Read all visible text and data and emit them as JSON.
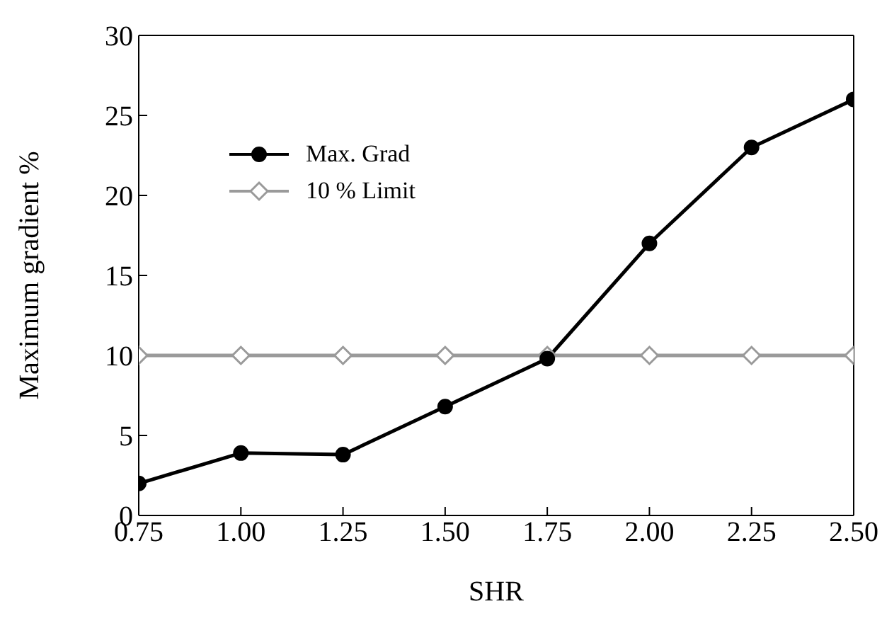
{
  "chart_data": {
    "type": "line",
    "xlabel": "SHR",
    "ylabel": "Maximum gradient  %",
    "x": [
      0.75,
      1.0,
      1.25,
      1.5,
      1.75,
      2.0,
      2.25,
      2.5
    ],
    "series": [
      {
        "name": "Max. Grad",
        "color": "#000000",
        "marker": "circle",
        "values": [
          2,
          3.9,
          3.8,
          6.8,
          9.8,
          17,
          23,
          26
        ]
      },
      {
        "name": "10 % Limit",
        "color": "#9a9a9a",
        "marker": "diamond",
        "values": [
          10,
          10,
          10,
          10,
          10,
          10,
          10,
          10
        ]
      }
    ],
    "xlim": [
      0.75,
      2.5
    ],
    "xticks": [
      {
        "value": 0.75,
        "label": "0.75"
      },
      {
        "value": 1,
        "label": "1.00"
      },
      {
        "value": 1.25,
        "label": "1.25"
      },
      {
        "value": 1.5,
        "label": "1.50"
      },
      {
        "value": 1.75,
        "label": "1.75"
      },
      {
        "value": 2,
        "label": "2.00"
      },
      {
        "value": 2.25,
        "label": "2.25"
      },
      {
        "value": 2.5,
        "label": "2.50"
      }
    ],
    "ylim": [
      0,
      30
    ],
    "yticks": [
      0,
      5,
      10,
      15,
      20,
      25,
      30
    ],
    "legend": "top left",
    "grid": false,
    "line_style": "solid"
  }
}
